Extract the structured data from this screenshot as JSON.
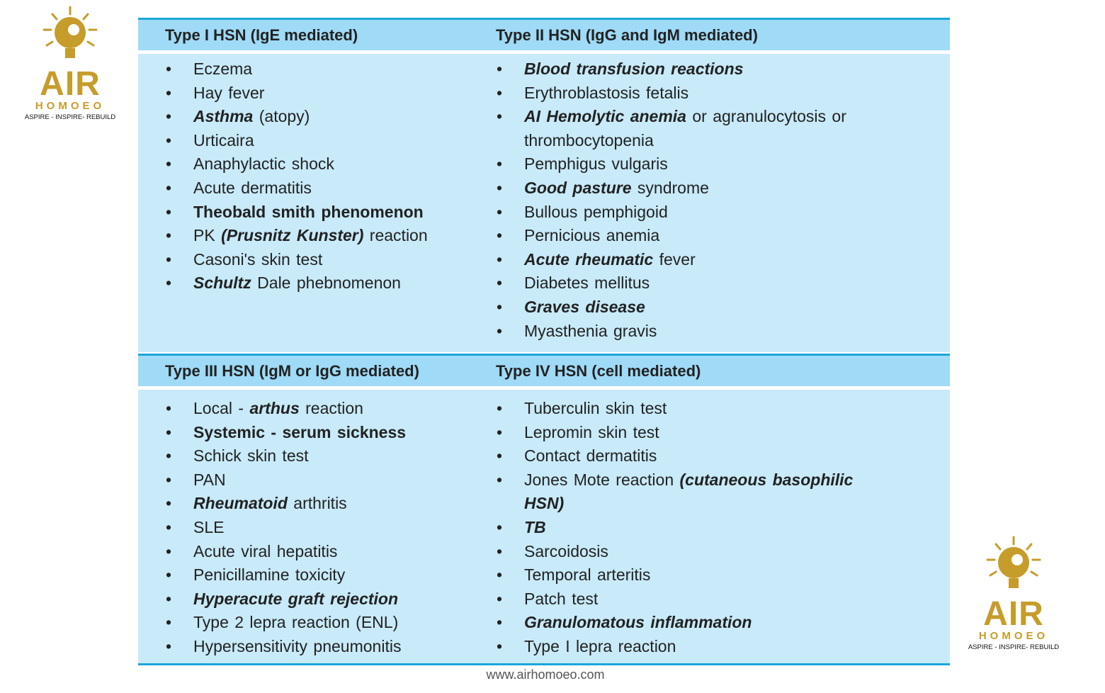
{
  "logo": {
    "name": "AIR",
    "subname": "HOMOEO",
    "tagline": "ASPIRE - INSPIRE- REBUILD"
  },
  "footer": "www.airhomoeo.com",
  "sections": [
    {
      "header": "Type I HSN (IgE mediated)",
      "items": [
        [
          {
            "text": "Eczema"
          }
        ],
        [
          {
            "text": "Hay fever"
          }
        ],
        [
          {
            "text": "Asthma",
            "bold": true,
            "italic": true
          },
          {
            "text": " (atopy)"
          }
        ],
        [
          {
            "text": "Urticaira"
          }
        ],
        [
          {
            "text": "Anaphylactic shock"
          }
        ],
        [
          {
            "text": "Acute dermatitis"
          }
        ],
        [
          {
            "text": "Theobald smith phenomenon",
            "bold": true
          }
        ],
        [
          {
            "text": "PK "
          },
          {
            "text": "(Prusnitz Kunster)",
            "bold": true,
            "italic": true
          },
          {
            "text": " reaction"
          }
        ],
        [
          {
            "text": "Casoni's skin test"
          }
        ],
        [
          {
            "text": "Schultz",
            "bold": true,
            "italic": true
          },
          {
            "text": " Dale phebnomenon"
          }
        ]
      ]
    },
    {
      "header": "Type II HSN (IgG and IgM mediated)",
      "items": [
        [
          {
            "text": "Blood transfusion reactions",
            "bold": true,
            "italic": true
          }
        ],
        [
          {
            "text": "Erythroblastosis fetalis"
          }
        ],
        [
          {
            "text": "AI Hemolytic anemia",
            "bold": true,
            "italic": true
          },
          {
            "text": " or agranulocytosis or thrombocytopenia"
          }
        ],
        [
          {
            "text": "Pemphigus vulgaris"
          }
        ],
        [
          {
            "text": "Good pasture",
            "bold": true,
            "italic": true
          },
          {
            "text": " syndrome"
          }
        ],
        [
          {
            "text": "Bullous pemphigoid"
          }
        ],
        [
          {
            "text": "Pernicious anemia"
          }
        ],
        [
          {
            "text": "Acute rheumatic",
            "bold": true,
            "italic": true
          },
          {
            "text": " fever"
          }
        ],
        [
          {
            "text": "Diabetes mellitus"
          }
        ],
        [
          {
            "text": "Graves disease",
            "bold": true,
            "italic": true
          }
        ],
        [
          {
            "text": "Myasthenia gravis"
          }
        ]
      ]
    },
    {
      "header": "Type III HSN (IgM or IgG mediated)",
      "items": [
        [
          {
            "text": "Local - "
          },
          {
            "text": "arthus",
            "bold": true,
            "italic": true
          },
          {
            "text": " reaction"
          }
        ],
        [
          {
            "text": "Systemic - serum sickness",
            "bold": true
          }
        ],
        [
          {
            "text": "Schick skin test"
          }
        ],
        [
          {
            "text": "PAN"
          }
        ],
        [
          {
            "text": "Rheumatoid",
            "bold": true,
            "italic": true
          },
          {
            "text": " arthritis"
          }
        ],
        [
          {
            "text": "SLE"
          }
        ],
        [
          {
            "text": "Acute viral hepatitis"
          }
        ],
        [
          {
            "text": "Penicillamine toxicity"
          }
        ],
        [
          {
            "text": "Hyperacute graft rejection",
            "bold": true,
            "italic": true
          }
        ],
        [
          {
            "text": "Type 2 lepra reaction (ENL)"
          }
        ],
        [
          {
            "text": "Hypersensitivity pneumonitis"
          }
        ]
      ]
    },
    {
      "header": "Type IV HSN (cell mediated)",
      "items": [
        [
          {
            "text": "Tuberculin skin test"
          }
        ],
        [
          {
            "text": "Lepromin skin test"
          }
        ],
        [
          {
            "text": "Contact dermatitis"
          }
        ],
        [
          {
            "text": "Jones Mote reaction "
          },
          {
            "text": "(cutaneous basophilic HSN)",
            "bold": true,
            "italic": true
          }
        ],
        [
          {
            "text": "TB",
            "bold": true,
            "italic": true
          }
        ],
        [
          {
            "text": "Sarcoidosis"
          }
        ],
        [
          {
            "text": "Temporal arteritis"
          }
        ],
        [
          {
            "text": "Patch test"
          }
        ],
        [
          {
            "text": "Granulomatous inflammation",
            "bold": true,
            "italic": true
          }
        ],
        [
          {
            "text": "Type I lepra reaction"
          }
        ]
      ]
    }
  ]
}
